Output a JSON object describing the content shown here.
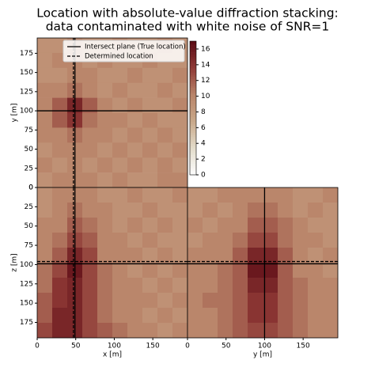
{
  "chart_data": [
    {
      "type": "heatmap",
      "title": [
        "Location with absolute-value diffraction stacking:",
        "data contaminated with white noise of SNR=1"
      ],
      "ylabel": "y [m]",
      "xlim": [
        0,
        195
      ],
      "ylim": [
        0,
        195
      ],
      "y_inverted": false,
      "yticks": [
        0,
        25,
        50,
        75,
        100,
        125,
        150,
        175
      ],
      "colormap": [
        "#fdfdfd",
        "#e3dccb",
        "#c9a98a",
        "#b98469",
        "#8f3a36",
        "#5a0a14"
      ],
      "colorbar": {
        "lim": [
          0,
          17
        ],
        "ticks": [
          0,
          2,
          4,
          6,
          8,
          10,
          12,
          14,
          16
        ]
      },
      "legend": [
        {
          "name": "Intersect plane (True location)",
          "style": "solid"
        },
        {
          "name": "Determined location",
          "style": "dashed"
        }
      ],
      "lines": [
        {
          "orientation": "v",
          "value": 49,
          "style": "solid"
        },
        {
          "orientation": "v",
          "value": 47,
          "style": "dashed"
        },
        {
          "orientation": "h",
          "value": 100,
          "style": "solid"
        }
      ],
      "values": [
        [
          9,
          9,
          10,
          9,
          9,
          10,
          9,
          9,
          10,
          9
        ],
        [
          9,
          10,
          10,
          9,
          10,
          9,
          9,
          10,
          9,
          9
        ],
        [
          9,
          9,
          10,
          10,
          9,
          9,
          10,
          9,
          9,
          10
        ],
        [
          10,
          10,
          11,
          10,
          9,
          10,
          9,
          9,
          10,
          9
        ],
        [
          10,
          12,
          15,
          12,
          10,
          9,
          10,
          9,
          9,
          10
        ],
        [
          10,
          12,
          14,
          11,
          10,
          10,
          9,
          10,
          9,
          9
        ],
        [
          10,
          10,
          11,
          10,
          10,
          9,
          10,
          9,
          10,
          9
        ],
        [
          9,
          10,
          10,
          10,
          9,
          10,
          9,
          10,
          9,
          10
        ],
        [
          10,
          9,
          10,
          9,
          10,
          9,
          10,
          9,
          10,
          9
        ],
        [
          9,
          10,
          10,
          10,
          9,
          10,
          9,
          9,
          10,
          10
        ]
      ]
    },
    {
      "type": "heatmap",
      "xlabel": "x [m]",
      "ylabel": "z [m]",
      "xlim": [
        0,
        195
      ],
      "ylim": [
        0,
        195
      ],
      "y_inverted": true,
      "xticks": [
        0,
        50,
        100,
        150
      ],
      "yticks": [
        0,
        25,
        50,
        75,
        100,
        125,
        150,
        175
      ],
      "lines": [
        {
          "orientation": "v",
          "value": 49,
          "style": "solid"
        },
        {
          "orientation": "v",
          "value": 47,
          "style": "dashed"
        },
        {
          "orientation": "h",
          "value": 99,
          "style": "solid"
        },
        {
          "orientation": "h",
          "value": 96,
          "style": "dashed"
        }
      ],
      "values": [
        [
          9,
          10,
          10,
          10,
          9,
          9,
          10,
          9,
          9,
          10
        ],
        [
          9,
          10,
          11,
          10,
          10,
          9,
          9,
          10,
          9,
          9
        ],
        [
          10,
          10,
          12,
          11,
          10,
          9,
          10,
          9,
          10,
          9
        ],
        [
          10,
          11,
          13,
          12,
          10,
          10,
          9,
          10,
          9,
          9
        ],
        [
          10,
          12,
          15,
          13,
          10,
          10,
          10,
          9,
          10,
          9
        ],
        [
          11,
          13,
          16,
          13,
          11,
          10,
          9,
          10,
          9,
          10
        ],
        [
          11,
          14,
          15,
          13,
          11,
          10,
          10,
          9,
          10,
          9
        ],
        [
          12,
          14,
          15,
          13,
          11,
          10,
          10,
          10,
          9,
          10
        ],
        [
          12,
          15,
          15,
          13,
          11,
          10,
          10,
          9,
          10,
          9
        ],
        [
          13,
          15,
          15,
          13,
          12,
          11,
          10,
          10,
          9,
          10
        ]
      ]
    },
    {
      "type": "heatmap",
      "xlabel": "y [m]",
      "xlim": [
        0,
        195
      ],
      "ylim": [
        0,
        195
      ],
      "y_inverted": true,
      "xticks": [
        0,
        50,
        100,
        150
      ],
      "lines": [
        {
          "orientation": "v",
          "value": 100,
          "style": "solid"
        },
        {
          "orientation": "h",
          "value": 99,
          "style": "solid"
        },
        {
          "orientation": "h",
          "value": 96,
          "style": "dashed"
        }
      ],
      "values": [
        [
          9,
          9,
          10,
          10,
          10,
          10,
          10,
          9,
          9,
          10
        ],
        [
          9,
          10,
          9,
          10,
          11,
          11,
          10,
          9,
          10,
          9
        ],
        [
          10,
          9,
          10,
          10,
          12,
          12,
          11,
          10,
          9,
          9
        ],
        [
          9,
          10,
          10,
          11,
          13,
          13,
          11,
          10,
          10,
          9
        ],
        [
          10,
          10,
          10,
          12,
          15,
          15,
          12,
          10,
          9,
          10
        ],
        [
          10,
          10,
          11,
          12,
          16,
          16,
          12,
          10,
          10,
          9
        ],
        [
          10,
          10,
          11,
          12,
          15,
          15,
          12,
          11,
          10,
          10
        ],
        [
          10,
          11,
          11,
          12,
          14,
          14,
          12,
          11,
          10,
          10
        ],
        [
          10,
          10,
          11,
          12,
          14,
          14,
          12,
          11,
          10,
          10
        ],
        [
          10,
          10,
          11,
          12,
          13,
          13,
          12,
          11,
          10,
          10
        ]
      ]
    }
  ]
}
